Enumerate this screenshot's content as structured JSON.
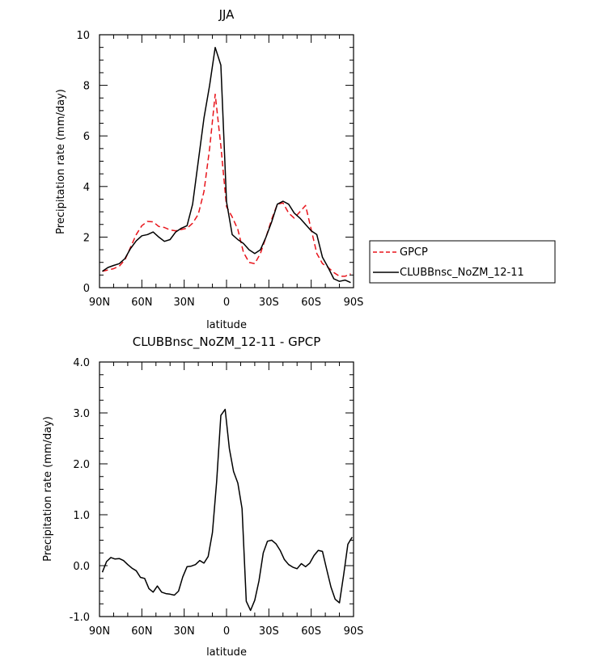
{
  "chart_data": [
    {
      "type": "line",
      "title": "JJA",
      "xlabel": "latitude",
      "ylabel": "Precipitation rate (mm/day)",
      "xlim": [
        90,
        -90
      ],
      "ylim": [
        0,
        10
      ],
      "xticks": [
        90,
        60,
        30,
        0,
        -30,
        -60,
        -90
      ],
      "xticklabels": [
        "90N",
        "60N",
        "30N",
        "0",
        "30S",
        "60S",
        "90S"
      ],
      "yticks": [
        0,
        2,
        4,
        6,
        8,
        10
      ],
      "yticklabels": [
        "0",
        "2",
        "4",
        "6",
        "8",
        "10"
      ],
      "legend_position": "right",
      "series": [
        {
          "name": "GPCP",
          "color": "#e8141b",
          "dash": "dashed",
          "x": [
            88,
            84,
            80,
            76,
            72,
            68,
            64,
            60,
            56,
            52,
            48,
            44,
            40,
            36,
            32,
            28,
            24,
            20,
            16,
            12,
            8,
            4,
            0,
            -4,
            -8,
            -12,
            -16,
            -20,
            -24,
            -28,
            -32,
            -36,
            -40,
            -44,
            -48,
            -52,
            -56,
            -60,
            -64,
            -68,
            -72,
            -76,
            -80,
            -84,
            -88
          ],
          "y": [
            0.65,
            0.7,
            0.75,
            0.85,
            1.1,
            1.6,
            2.1,
            2.45,
            2.62,
            2.6,
            2.42,
            2.38,
            2.28,
            2.25,
            2.3,
            2.35,
            2.55,
            2.9,
            3.8,
            5.5,
            7.65,
            5.6,
            3.2,
            2.8,
            2.3,
            1.4,
            1.0,
            0.95,
            1.35,
            2.0,
            2.7,
            3.3,
            3.35,
            2.95,
            2.75,
            3.0,
            3.25,
            2.3,
            1.35,
            0.95,
            0.8,
            0.6,
            0.45,
            0.45,
            0.55
          ]
        },
        {
          "name": "CLUBBnsc_NoZM_12-11",
          "color": "#000000",
          "dash": "solid",
          "x": [
            88,
            84,
            80,
            76,
            72,
            68,
            64,
            60,
            56,
            52,
            48,
            44,
            40,
            36,
            32,
            28,
            24,
            20,
            16,
            12,
            8,
            4,
            0,
            -4,
            -8,
            -12,
            -16,
            -20,
            -24,
            -28,
            -32,
            -36,
            -40,
            -44,
            -48,
            -52,
            -56,
            -60,
            -64,
            -68,
            -72,
            -76,
            -80,
            -84,
            -88
          ],
          "y": [
            0.65,
            0.8,
            0.88,
            0.95,
            1.15,
            1.55,
            1.85,
            2.05,
            2.1,
            2.2,
            2.0,
            1.83,
            1.9,
            2.2,
            2.35,
            2.45,
            3.3,
            5.0,
            6.7,
            8.0,
            9.5,
            8.8,
            3.4,
            2.1,
            1.9,
            1.75,
            1.5,
            1.35,
            1.5,
            2.0,
            2.6,
            3.3,
            3.42,
            3.3,
            2.95,
            2.75,
            2.5,
            2.25,
            2.1,
            1.2,
            0.8,
            0.35,
            0.25,
            0.3,
            0.2
          ]
        }
      ]
    },
    {
      "type": "line",
      "title": "CLUBBnsc_NoZM_12-11 - GPCP",
      "xlabel": "latitude",
      "ylabel": "Precipitation rate (mm/day)",
      "xlim": [
        90,
        -90
      ],
      "ylim": [
        -1,
        4
      ],
      "xticks": [
        90,
        60,
        30,
        0,
        -30,
        -60,
        -90
      ],
      "xticklabels": [
        "90N",
        "60N",
        "30N",
        "0",
        "30S",
        "60S",
        "90S"
      ],
      "yticks": [
        -1,
        0,
        1,
        2,
        3,
        4
      ],
      "yticklabels": [
        "-1.0",
        "0.0",
        "1.0",
        "2.0",
        "3.0",
        "4.0"
      ],
      "series": [
        {
          "color": "#000000",
          "dash": "solid",
          "x": [
            88,
            85,
            82,
            79,
            76,
            73,
            70,
            67,
            64,
            61,
            58,
            55,
            52,
            49,
            46,
            43,
            40,
            37,
            34,
            31,
            28,
            25,
            22,
            19,
            16,
            13,
            10,
            7,
            4,
            1,
            -2,
            -5,
            -8,
            -11,
            -14,
            -17,
            -20,
            -23,
            -26,
            -29,
            -32,
            -35,
            -38,
            -41,
            -44,
            -47,
            -50,
            -53,
            -56,
            -59,
            -62,
            -65,
            -68,
            -71,
            -74,
            -77,
            -80,
            -83,
            -86,
            -89
          ],
          "y": [
            -0.13,
            0.08,
            0.16,
            0.13,
            0.14,
            0.1,
            0.02,
            -0.05,
            -0.1,
            -0.23,
            -0.25,
            -0.45,
            -0.52,
            -0.4,
            -0.52,
            -0.55,
            -0.56,
            -0.58,
            -0.5,
            -0.22,
            -0.02,
            -0.01,
            0.02,
            0.1,
            0.05,
            0.18,
            0.65,
            1.65,
            2.95,
            3.07,
            2.3,
            1.85,
            1.62,
            1.12,
            -0.7,
            -0.88,
            -0.68,
            -0.3,
            0.25,
            0.48,
            0.5,
            0.43,
            0.3,
            0.12,
            0.02,
            -0.03,
            -0.06,
            0.04,
            -0.02,
            0.05,
            0.2,
            0.3,
            0.28,
            -0.08,
            -0.42,
            -0.66,
            -0.73,
            -0.18,
            0.42,
            0.56
          ]
        }
      ]
    }
  ]
}
